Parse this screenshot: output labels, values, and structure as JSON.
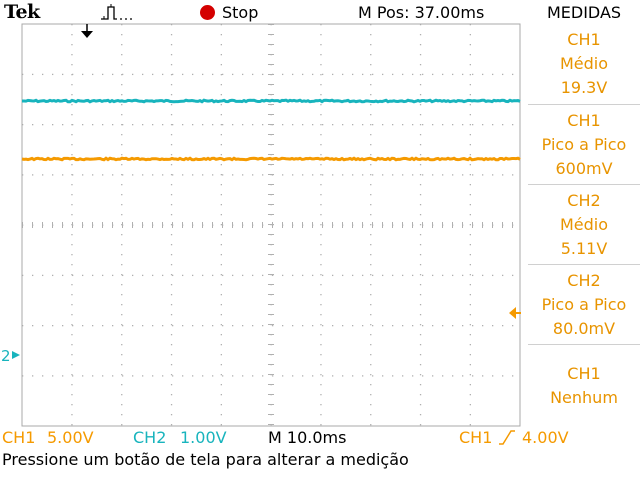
{
  "header": {
    "brand": "Tek",
    "acquisition_icon": "pulse-trigger-icon",
    "run_state": "Stop",
    "run_state_icon": "stop-dot-icon",
    "run_state_color": "#d40000",
    "m_pos": "M Pos: 37.00ms"
  },
  "menu": {
    "title": "MEDIDAS",
    "text_color": "#e89400",
    "measurements": [
      {
        "source": "CH1",
        "type": "Médio",
        "value": "19.3V"
      },
      {
        "source": "CH1",
        "type": "Pico a Pico",
        "value": "600mV"
      },
      {
        "source": "CH2",
        "type": "Médio",
        "value": "5.11V"
      },
      {
        "source": "CH2",
        "type": "Pico a Pico",
        "value": "80.0mV"
      },
      {
        "source": "CH1",
        "type": "Nenhum"
      }
    ]
  },
  "traces": {
    "ch1_color": "#f59a00",
    "ch2_color": "#18b4bd",
    "ch2_marker": "2",
    "trigger_marker_icon": "trigger-level-arrow-icon",
    "trigger_position_icon": "trigger-position-arrow-icon"
  },
  "status": {
    "ch1_label": "CH1",
    "ch1_scale": "5.00V",
    "ch2_label": "CH2",
    "ch2_scale": "1.00V",
    "timebase": "M 10.0ms",
    "trigger_source": "CH1",
    "trigger_slope_icon": "rising-edge-icon",
    "trigger_level": "4.00V"
  },
  "hint": "Pressione um botão de tela para alterar a medição"
}
